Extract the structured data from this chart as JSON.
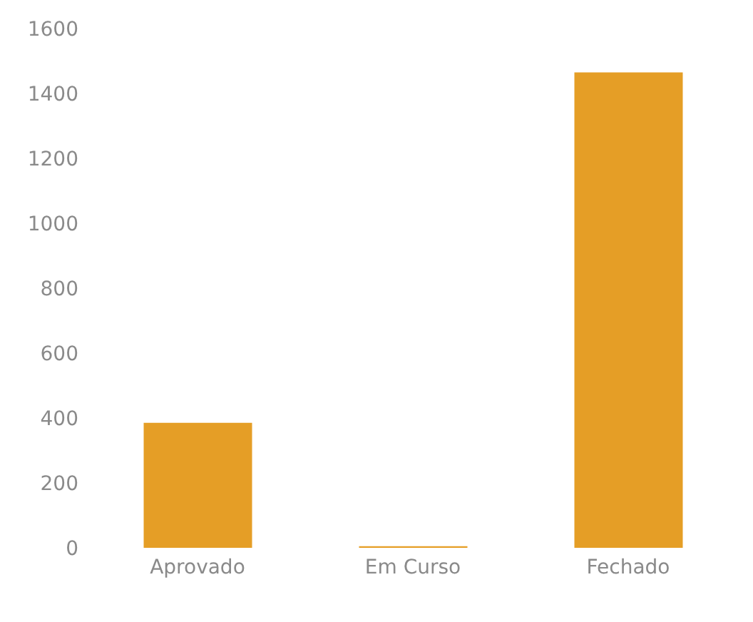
{
  "chart_data": {
    "type": "bar",
    "categories": [
      "Aprovado",
      "Em Curso",
      "Fechado"
    ],
    "values": [
      385,
      5,
      1465
    ],
    "color": "#e59e26",
    "ylim": [
      0,
      1600
    ],
    "yticks": [
      0,
      200,
      400,
      600,
      800,
      1000,
      1200,
      1400,
      1600
    ],
    "grid": false
  }
}
